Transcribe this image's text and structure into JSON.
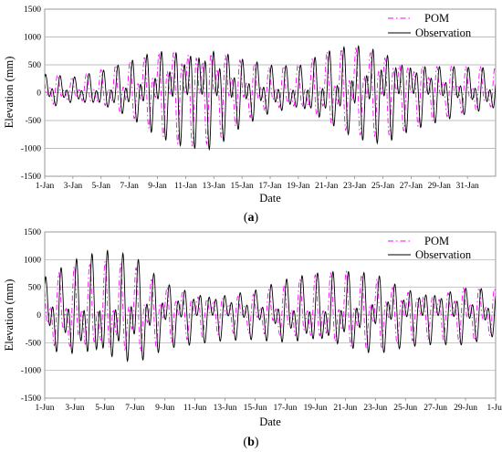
{
  "chart_data": [
    {
      "type": "line",
      "panel_label": "a",
      "xlabel": "Date",
      "ylabel": "Elevation (mm)",
      "ylim": [
        -1500,
        1500
      ],
      "yticks": [
        1500,
        1000,
        500,
        0,
        -500,
        -1000,
        -1500
      ],
      "x_range": [
        "Jan 1",
        "Feb 2"
      ],
      "xtick_labels": [
        "1-Jan",
        "3-Jan",
        "5-Jan",
        "7-Jan",
        "9-Jan",
        "11-Jan",
        "13-Jan",
        "15-Jan",
        "17-Jan",
        "19-Jan",
        "21-Jan",
        "23-Jan",
        "25-Jan",
        "27-Jan",
        "29-Jan",
        "31-Jan"
      ],
      "grid": "horizontal",
      "legend_position": "top-right",
      "series": [
        {
          "name": "POM",
          "color": "#ff00ff",
          "style": "dash-dot",
          "x": [
            "Jan 1",
            "Jan 3",
            "Jan 5",
            "Jan 7",
            "Jan 9",
            "Jan 11",
            "Jan 13",
            "Jan 15",
            "Jan 17",
            "Jan 19",
            "Jan 21",
            "Jan 23",
            "Jan 25",
            "Jan 27",
            "Jan 29",
            "Jan 31",
            "Feb 2"
          ],
          "amplitude": [
            300,
            220,
            340,
            500,
            750,
            920,
            860,
            560,
            380,
            420,
            650,
            800,
            760,
            620,
            480,
            420,
            380
          ]
        },
        {
          "name": "Observation",
          "color": "#000000",
          "style": "solid",
          "x": [
            "Jan 1",
            "Jan 3",
            "Jan 5",
            "Jan 7",
            "Jan 9",
            "Jan 11",
            "Jan 13",
            "Jan 15",
            "Jan 17",
            "Jan 19",
            "Jan 21",
            "Jan 23",
            "Jan 25",
            "Jan 27",
            "Jan 29",
            "Jan 31",
            "Feb 2"
          ],
          "amplitude": [
            330,
            250,
            350,
            540,
            830,
            960,
            1000,
            650,
            470,
            430,
            700,
            900,
            920,
            660,
            540,
            450,
            400
          ]
        }
      ]
    },
    {
      "type": "line",
      "panel_label": "b",
      "xlabel": "Date",
      "ylabel": "Elevation (mm)",
      "ylim": [
        -1500,
        1500
      ],
      "yticks": [
        1500,
        1000,
        500,
        0,
        -500,
        -1000,
        -1500
      ],
      "x_range": [
        "Jun 1",
        "Jul 1"
      ],
      "xtick_labels": [
        "1-Jun",
        "3-Jun",
        "5-Jun",
        "7-Jun",
        "9-Jun",
        "11-Jun",
        "13-Jun",
        "15-Jun",
        "17-Jun",
        "19-Jun",
        "21-Jun",
        "23-Jun",
        "25-Jun",
        "27-Jun",
        "29-Jun",
        "1-Jul"
      ],
      "grid": "horizontal",
      "legend_position": "top-right",
      "series": [
        {
          "name": "POM",
          "color": "#ff00ff",
          "style": "dash-dot",
          "x": [
            "Jun 1",
            "Jun 3",
            "Jun 5",
            "Jun 7",
            "Jun 9",
            "Jun 11",
            "Jun 13",
            "Jun 15",
            "Jun 17",
            "Jun 19",
            "Jun 21",
            "Jun 23",
            "Jun 25",
            "Jun 27",
            "Jun 29",
            "Jul 1"
          ],
          "amplitude": [
            600,
            780,
            850,
            800,
            520,
            420,
            340,
            360,
            480,
            620,
            700,
            650,
            480,
            420,
            520,
            420
          ]
        },
        {
          "name": "Observation",
          "color": "#000000",
          "style": "solid",
          "x": [
            "Jun 1",
            "Jun 3",
            "Jun 5",
            "Jun 7",
            "Jun 9",
            "Jun 11",
            "Jun 13",
            "Jun 15",
            "Jun 17",
            "Jun 19",
            "Jun 21",
            "Jun 23",
            "Jun 25",
            "Jun 27",
            "Jun 29",
            "Jul 1"
          ],
          "amplitude": [
            700,
            950,
            1100,
            1050,
            640,
            520,
            460,
            480,
            620,
            700,
            750,
            780,
            580,
            520,
            560,
            450
          ]
        }
      ]
    }
  ],
  "captions": [
    "(a)",
    "(b)"
  ]
}
